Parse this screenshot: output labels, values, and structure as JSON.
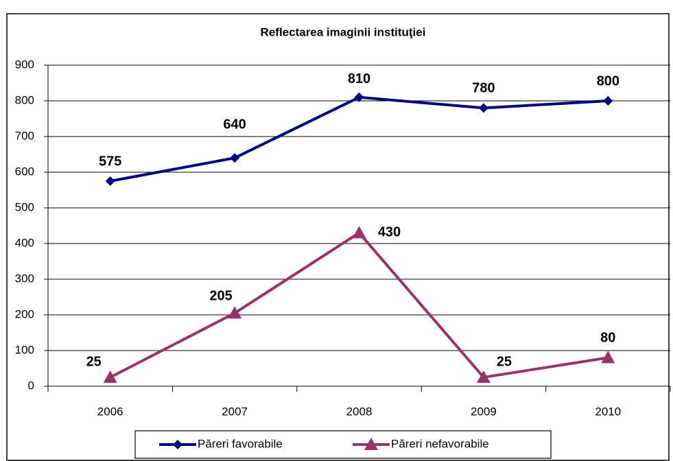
{
  "chart_data": {
    "type": "line",
    "title": "Reflectarea imaginii instituţiei",
    "categories": [
      "2006",
      "2007",
      "2008",
      "2009",
      "2010"
    ],
    "series": [
      {
        "name": "Păreri favorabile",
        "color": "#000080",
        "marker": "diamond",
        "values": [
          575,
          640,
          810,
          780,
          800
        ]
      },
      {
        "name": "Păreri nefavorabile",
        "color": "#993366",
        "marker": "triangle",
        "values": [
          25,
          205,
          430,
          25,
          80
        ]
      }
    ],
    "ylim": [
      0,
      900
    ],
    "yticks": [
      0,
      100,
      200,
      300,
      400,
      500,
      600,
      700,
      800,
      900
    ],
    "grid": true
  }
}
